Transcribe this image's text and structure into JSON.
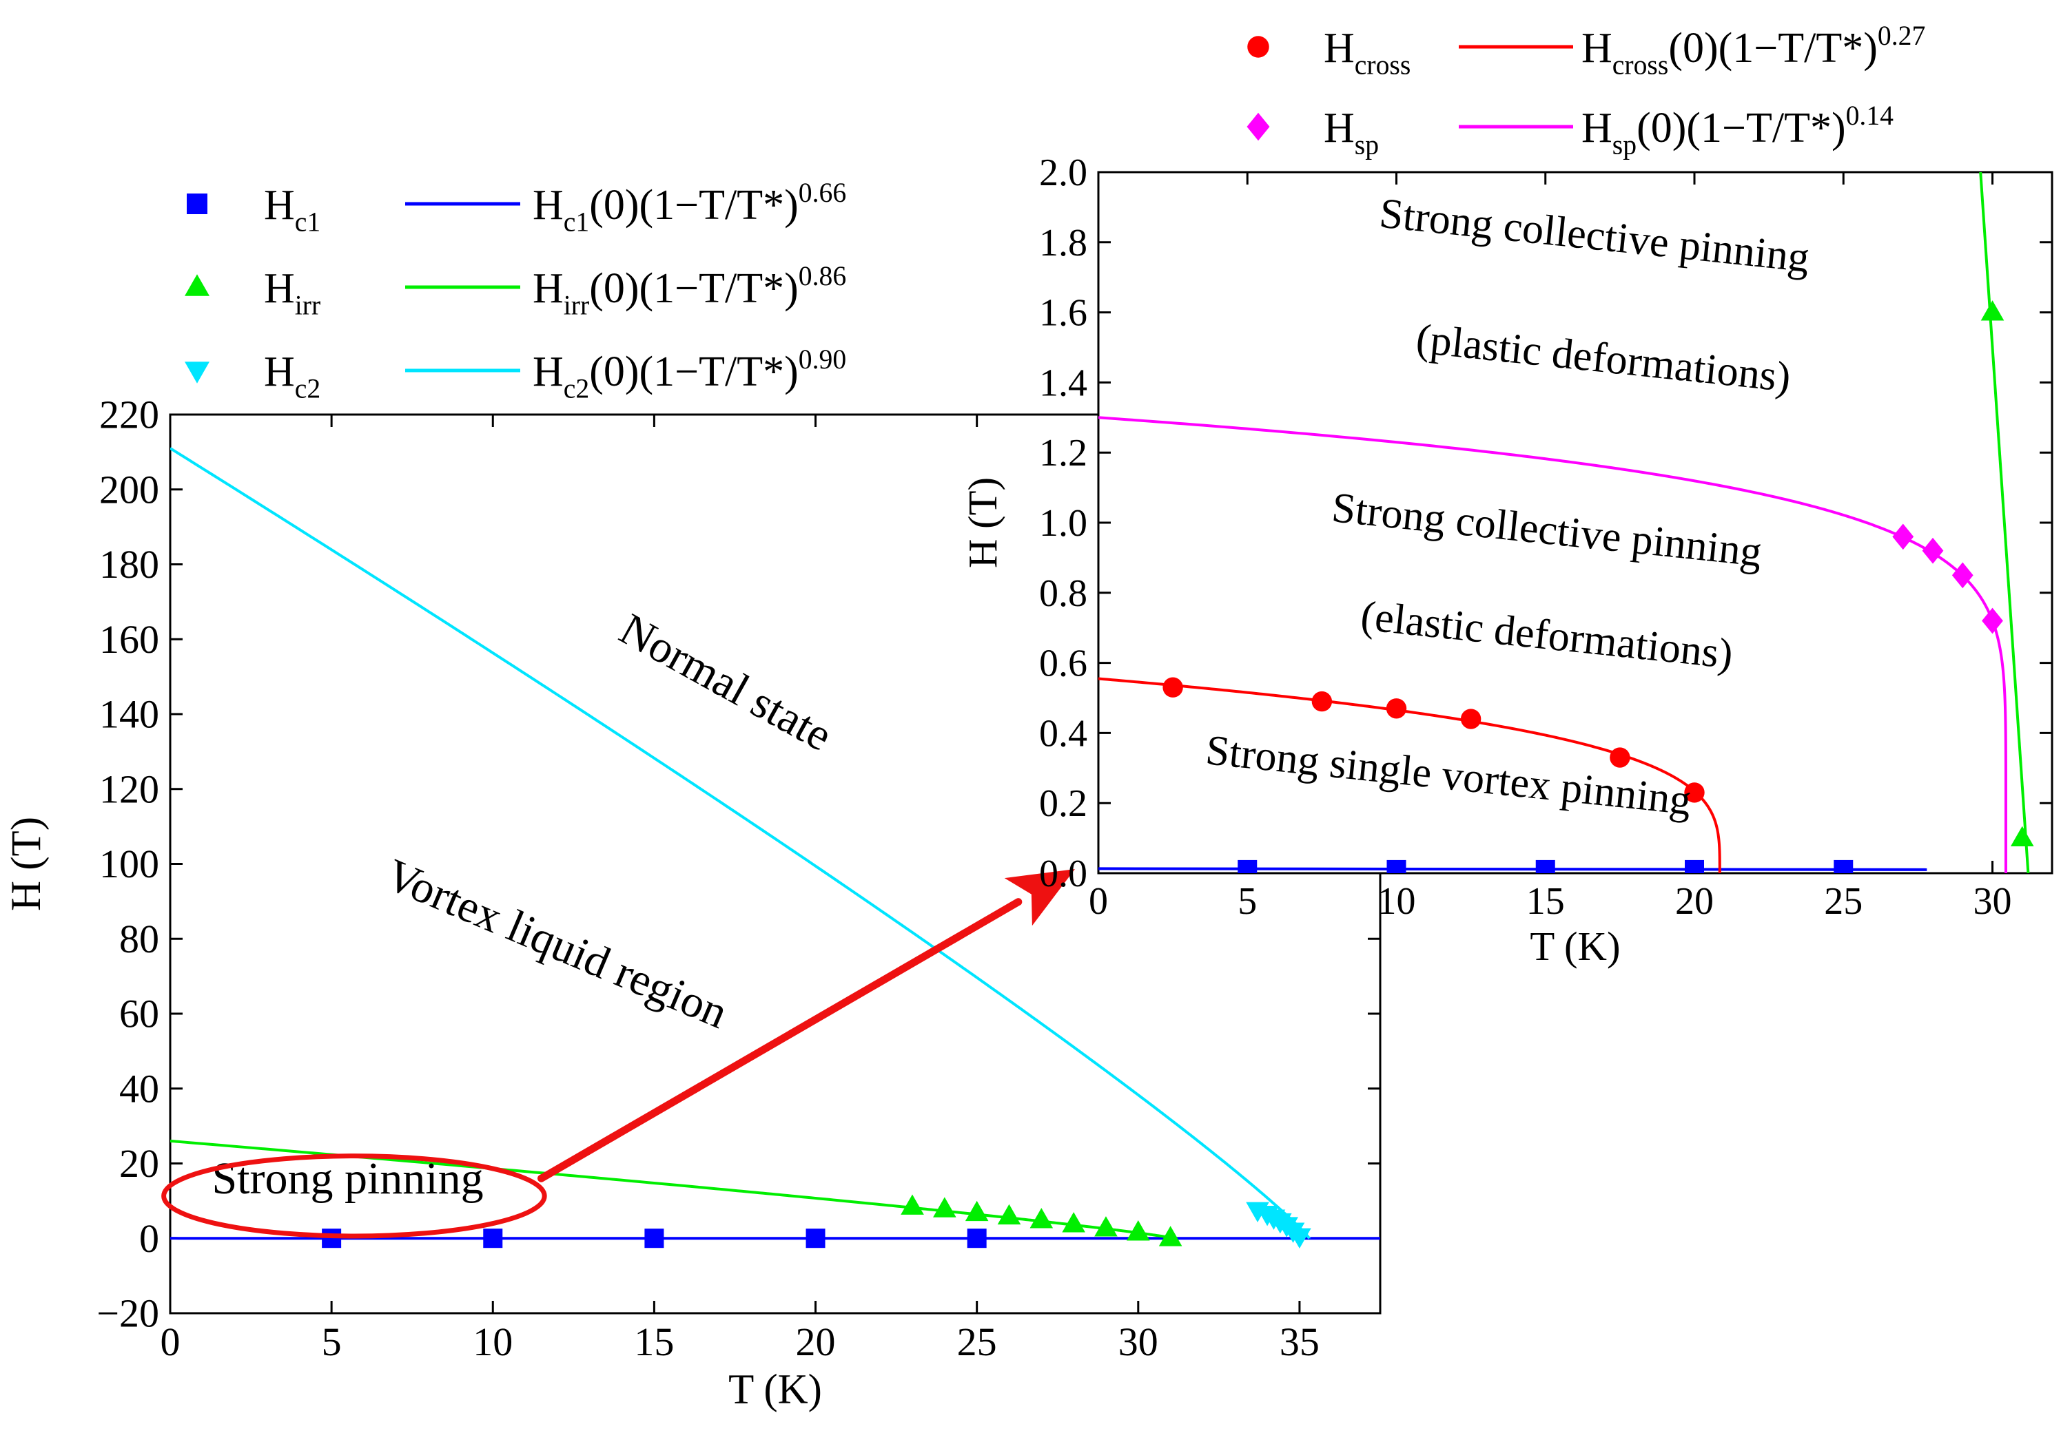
{
  "chart_data": [
    {
      "id": "main",
      "type": "scatter",
      "xlabel": "T (K)",
      "ylabel": "H (T)",
      "xlim": [
        0,
        37.5
      ],
      "ylim": [
        -20,
        220
      ],
      "xticks": [
        0,
        5,
        10,
        15,
        20,
        25,
        30,
        35
      ],
      "yticks": [
        -20,
        0,
        20,
        40,
        60,
        80,
        100,
        120,
        140,
        160,
        180,
        200,
        220
      ],
      "grid": false,
      "legend_position": "top-left, above plot",
      "series": [
        {
          "name": "H",
          "sub": "c1",
          "marker": "square",
          "color": "#0000ff",
          "x": [
            5,
            10,
            15,
            20,
            25
          ],
          "y": [
            0.01,
            0.01,
            0.01,
            0.01,
            0.01
          ]
        },
        {
          "name": "H",
          "sub": "irr",
          "marker": "triangle-up",
          "color": "#00ee00",
          "x": [
            23,
            24,
            25,
            26,
            27,
            28,
            29,
            30,
            31
          ],
          "y": [
            8.5,
            7.8,
            6.8,
            5.9,
            4.9,
            3.8,
            2.7,
            1.6,
            0.1
          ]
        },
        {
          "name": "H",
          "sub": "c2",
          "marker": "triangle-down",
          "color": "#00e5ff",
          "x": [
            33.7,
            34.0,
            34.2,
            34.4,
            34.6,
            34.8,
            35.0
          ],
          "y": [
            7.5,
            6.5,
            5.5,
            4.5,
            3.5,
            2.0,
            0.5
          ]
        }
      ],
      "fits": [
        {
          "name": "H",
          "sub": "c1",
          "tail": "(0)(1−T/T*)",
          "exp_label": "0.66",
          "color": "#0000ff",
          "h0": 0.012,
          "tstar": 37.5,
          "exp": 0.66
        },
        {
          "name": "H",
          "sub": "irr",
          "tail": "(0)(1−T/T*)",
          "exp_label": "0.86",
          "color": "#00ee00",
          "h0": 26,
          "tstar": 31.1,
          "exp": 0.86
        },
        {
          "name": "H",
          "sub": "c2",
          "tail": "(0)(1−T/T*)",
          "exp_label": "0.90",
          "color": "#00e5ff",
          "h0": 211,
          "tstar": 35.3,
          "exp": 0.9
        }
      ],
      "zero_line": {
        "y": 0,
        "color": "#000000"
      },
      "annotations": [
        {
          "text": "Normal state",
          "x": 17,
          "y": 145,
          "rotate_deg": 29
        },
        {
          "text": "Vortex liquid region",
          "x": 11.8,
          "y": 75,
          "rotate_deg": 23
        },
        {
          "text": "Strong pinning",
          "x": 5.5,
          "y": 12,
          "rotate_deg": 0
        }
      ],
      "ellipse": {
        "cx": 5.7,
        "cy": 11.3,
        "rx": 5.9,
        "ry": 10.7,
        "color": "#ee1111"
      }
    },
    {
      "id": "inset",
      "type": "scatter",
      "xlabel": "T (K)",
      "ylabel": "H (T)",
      "xlim": [
        0,
        32
      ],
      "ylim": [
        0,
        2.0
      ],
      "xticks": [
        0,
        5,
        10,
        15,
        20,
        25,
        30
      ],
      "yticks": [
        0.0,
        0.2,
        0.4,
        0.6,
        0.8,
        1.0,
        1.2,
        1.4,
        1.6,
        1.8,
        2.0
      ],
      "grid": false,
      "legend_position": "top, above plot",
      "series": [
        {
          "name": "H",
          "sub": "cross",
          "marker": "circle",
          "color": "#ff0000",
          "x": [
            2.5,
            7.5,
            10,
            12.5,
            17.5,
            20
          ],
          "y": [
            0.53,
            0.49,
            0.47,
            0.44,
            0.33,
            0.23
          ]
        },
        {
          "name": "H",
          "sub": "sp",
          "marker": "diamond",
          "color": "#ff00ff",
          "x": [
            27,
            28,
            29,
            30
          ],
          "y": [
            0.96,
            0.92,
            0.85,
            0.72
          ]
        },
        {
          "name": "H",
          "sub": "irr",
          "marker": "triangle-up",
          "color": "#00ee00",
          "x": [
            30,
            31
          ],
          "y": [
            1.6,
            0.1
          ]
        },
        {
          "name": "H",
          "sub": "c1",
          "marker": "square",
          "color": "#0000ff",
          "x": [
            5,
            10,
            15,
            20,
            25
          ],
          "y": [
            0.01,
            0.01,
            0.01,
            0.01,
            0.01
          ]
        }
      ],
      "fits": [
        {
          "name": "H",
          "sub": "cross",
          "tail": "(0)(1−T/T*)",
          "exp_label": "0.27",
          "color": "#ff0000",
          "h0": 0.555,
          "tstar": 20.85,
          "exp": 0.27
        },
        {
          "name": "H",
          "sub": "sp",
          "tail": "(0)(1−T/T*)",
          "exp_label": "0.14",
          "color": "#ff00ff",
          "h0": 1.3,
          "tstar": 30.45,
          "exp": 0.14
        }
      ],
      "extra_lines": [
        {
          "color": "#00ee00",
          "points": [
            [
              29.6,
              2.0
            ],
            [
              31.2,
              0.0
            ]
          ]
        },
        {
          "color": "#0000ff",
          "points": [
            [
              0,
              0.013
            ],
            [
              27.8,
              0.01
            ]
          ]
        }
      ],
      "annotations": [
        {
          "text": "Strong collective pinning",
          "x": 16.6,
          "y": 1.78,
          "rotate_deg": 6
        },
        {
          "text": "(plastic deformations)",
          "x": 16.9,
          "y": 1.43,
          "rotate_deg": 6
        },
        {
          "text": "Strong collective pinning",
          "x": 15.0,
          "y": 0.94,
          "rotate_deg": 6
        },
        {
          "text": "(elastic deformations)",
          "x": 15.0,
          "y": 0.64,
          "rotate_deg": 6
        },
        {
          "text": "Strong single vortex pinning",
          "x": 11.7,
          "y": 0.24,
          "rotate_deg": 6
        }
      ]
    }
  ]
}
